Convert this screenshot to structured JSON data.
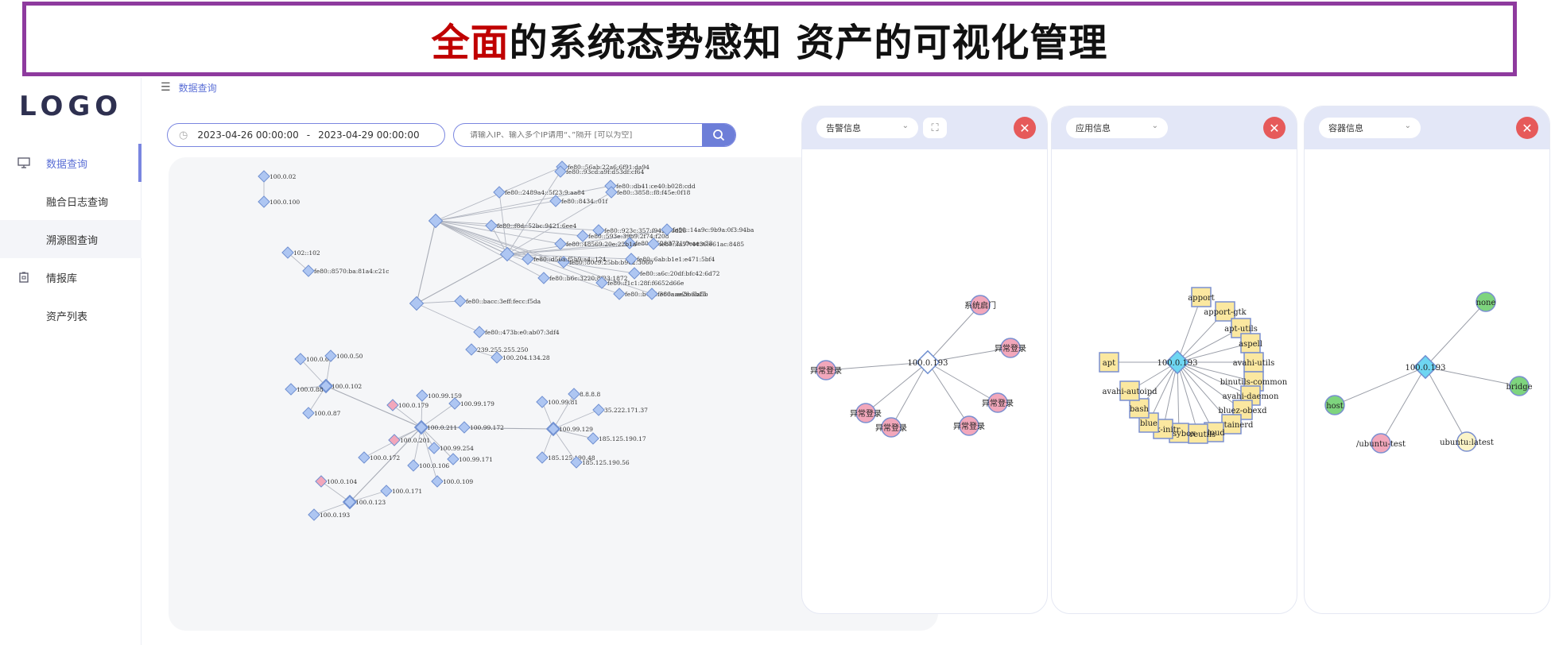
{
  "banner": {
    "highlight": "全面",
    "title_rest": "的系统态势感知 资产的可视化管理"
  },
  "logo": "LOGO",
  "sidebar": {
    "items": [
      {
        "label": "数据查询",
        "icon": "monitor-icon"
      },
      {
        "label": "融合日志查询",
        "icon": ""
      },
      {
        "label": "溯源图查询",
        "icon": ""
      },
      {
        "label": "情报库",
        "icon": "building-icon"
      },
      {
        "label": "资产列表",
        "icon": ""
      }
    ]
  },
  "breadcrumb": "数据查询",
  "date_range": {
    "start": "2023-04-26 00:00:00",
    "separator": "-",
    "end": "2023-04-29 00:00:00"
  },
  "search": {
    "placeholder": "请输入IP、输入多个IP请用“、”隔开 [可以为空]"
  },
  "graph": {
    "nodes": [
      {
        "label": "fe80::56ab:22a6:6f91:da94"
      },
      {
        "label": "fe80::93cd:a9f:d53df:cf64"
      },
      {
        "label": "fe80::db41:ce40:b028:cdd"
      },
      {
        "label": "fe80::2489a4::5f23:9:aa84"
      },
      {
        "label": "fe80::8434::01f"
      },
      {
        "label": "fe80::3858::f8:f45e:0f18"
      },
      {
        "label": "fe80::923c:357:f9423:6d26"
      },
      {
        "label": "fe80::f8d::52bc:9421:6ee4"
      },
      {
        "label": "fe80::593e:39b9:2f74:f208"
      },
      {
        "label": "fe80::14a9c:9b9a:0f3:94ba"
      },
      {
        "label": "fe80::80c9:25bb:b962:3060"
      },
      {
        "label": "fe80::a52f:3721:0eae:a38"
      },
      {
        "label": "fe80::48569:20e:22b1a"
      },
      {
        "label": "fe80::fa57:4436:e61ac:8485"
      },
      {
        "label": "fe80::d56a:f5b9:a4::124"
      },
      {
        "label": "fe80::6ab:b1e1:e471:5bf4"
      },
      {
        "label": "fe80::b6c:3220:8f23:1872"
      },
      {
        "label": "fe80::a6c:20df:bfc42:6d72"
      },
      {
        "label": "fe80::f1c1:28f:f6652d66e"
      },
      {
        "label": "fe80::b445:366a:ae3b:6a5b"
      },
      {
        "label": "fe80::ae2e:6b15"
      },
      {
        "label": "fe80::bacc:3eff:fecc:f5da"
      },
      {
        "label": "fe80::473b:e0:ab07:3df4"
      },
      {
        "label": "100.0.02"
      },
      {
        "label": "100.0.100"
      },
      {
        "label": "102::102"
      },
      {
        "label": "fe80::8570:ba:81a4:c21c"
      },
      {
        "label": "239.255.255.250"
      },
      {
        "label": "100.204.134.28"
      },
      {
        "label": "100.0.61"
      },
      {
        "label": "100.0.50"
      },
      {
        "label": "100.0.102"
      },
      {
        "label": "100.0.88"
      },
      {
        "label": "100.0.87"
      },
      {
        "label": "100.0.179"
      },
      {
        "label": "100.99.159"
      },
      {
        "label": "100.99.179"
      },
      {
        "label": "100.99.172"
      },
      {
        "label": "100.0.211"
      },
      {
        "label": "100.0.201"
      },
      {
        "label": "100.99.254"
      },
      {
        "label": "100.0.172"
      },
      {
        "label": "100.99.171"
      },
      {
        "label": "100.0.106"
      },
      {
        "label": "100.0.109"
      },
      {
        "label": "100.0.104"
      },
      {
        "label": "100.0.171"
      },
      {
        "label": "100.0.123"
      },
      {
        "label": "100.0.193"
      },
      {
        "label": "100.99.81"
      },
      {
        "label": "8.8.8.8"
      },
      {
        "label": "35.222.171.37"
      },
      {
        "label": "100.99.129"
      },
      {
        "label": "185.125.190.17"
      },
      {
        "label": "185.125.190.48"
      },
      {
        "label": "185.125.190.56"
      }
    ]
  },
  "panels": [
    {
      "select": "告警信息",
      "center": "100.0.193",
      "nodes": [
        "系统启门",
        "异常登录",
        "异常登录",
        "异常登录",
        "异常登录",
        "异常登录",
        "异常登录"
      ]
    },
    {
      "select": "应用信息",
      "center": "100.0.193",
      "nodes": [
        "apport",
        "apport-gtk",
        "apt-utils",
        "aspell",
        "avahi-utils",
        "binutils-common",
        "avahi-daemon",
        "bluez-obexd",
        "containerd",
        "cloud",
        "coreutils",
        "busybox",
        "box-initr",
        "blue",
        "bash",
        "avahi-autoipd",
        "apt"
      ]
    },
    {
      "select": "容器信息",
      "center": "100.0.193",
      "nodes": [
        "none",
        "bridge",
        "host",
        "/ubuntu-test",
        "ubuntu:latest"
      ]
    }
  ],
  "colors": {
    "accent": "#6d7ed8",
    "banner_border": "#8e3a9e",
    "highlight": "#c00000",
    "close": "#e65a5a",
    "node_blue": "#aec6f2",
    "node_pink": "#f2a7bb",
    "node_green": "#7ed47e",
    "node_yellow": "#fbe8a0",
    "center_cyan": "#6ed6f2"
  }
}
